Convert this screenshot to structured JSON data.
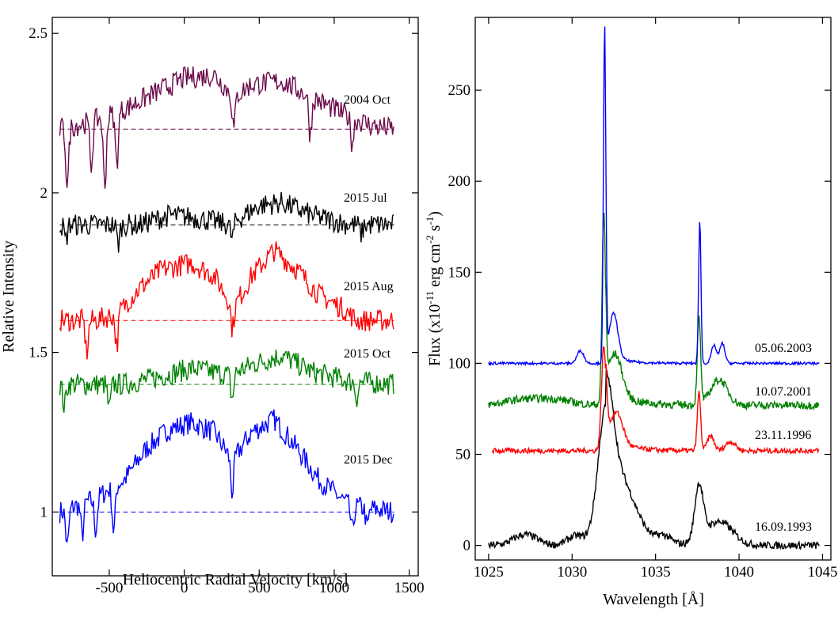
{
  "chart_data": [
    {
      "type": "line",
      "name": "left-panel",
      "xlabel": "Heliocentric Radial Velocity [km/s]",
      "ylabel": "Relative Intensity",
      "xlim": [
        -880,
        1560
      ],
      "ylim": [
        0.8,
        2.55
      ],
      "xticks": [
        -500,
        0,
        500,
        1000,
        1500
      ],
      "yticks": [
        1,
        1.5,
        2,
        2.5
      ],
      "xtick_labels": [
        "-500",
        "0",
        "500",
        "1000",
        "1500"
      ],
      "ytick_labels": [
        "1",
        "1.5",
        "2",
        "2.5"
      ],
      "x_range": [
        -830,
        1400
      ],
      "series": [
        {
          "name": "2015 Dec",
          "color": "#0000ff",
          "baseline": 1.0,
          "profile": [
            [
              -830,
              1.0
            ],
            [
              -600,
              1.04
            ],
            [
              -400,
              1.1
            ],
            [
              -250,
              1.2
            ],
            [
              -100,
              1.26
            ],
            [
              50,
              1.28
            ],
            [
              200,
              1.25
            ],
            [
              320,
              1.16
            ],
            [
              450,
              1.25
            ],
            [
              600,
              1.29
            ],
            [
              750,
              1.2
            ],
            [
              900,
              1.1
            ],
            [
              1100,
              1.02
            ],
            [
              1400,
              1.0
            ]
          ],
          "absorptions": [
            [
              -780,
              0.12
            ],
            [
              -680,
              0.1
            ],
            [
              -590,
              0.1
            ],
            [
              -470,
              0.14
            ],
            [
              320,
              0.1
            ],
            [
              1120,
              0.08
            ],
            [
              1220,
              0.06
            ]
          ]
        },
        {
          "name": "2015 Oct",
          "color": "#008000",
          "baseline": 1.4,
          "profile": [
            [
              -830,
              1.4
            ],
            [
              -400,
              1.4
            ],
            [
              -200,
              1.42
            ],
            [
              50,
              1.45
            ],
            [
              300,
              1.43
            ],
            [
              500,
              1.47
            ],
            [
              650,
              1.49
            ],
            [
              850,
              1.44
            ],
            [
              1100,
              1.41
            ],
            [
              1400,
              1.4
            ]
          ],
          "absorptions": [
            [
              -800,
              0.07
            ],
            [
              -500,
              0.08
            ],
            [
              320,
              0.08
            ],
            [
              1150,
              0.05
            ]
          ]
        },
        {
          "name": "2015 Aug",
          "color": "#ff0000",
          "baseline": 1.6,
          "profile": [
            [
              -830,
              1.6
            ],
            [
              -600,
              1.6
            ],
            [
              -450,
              1.62
            ],
            [
              -300,
              1.7
            ],
            [
              -150,
              1.76
            ],
            [
              50,
              1.78
            ],
            [
              200,
              1.74
            ],
            [
              330,
              1.64
            ],
            [
              450,
              1.74
            ],
            [
              600,
              1.82
            ],
            [
              750,
              1.76
            ],
            [
              900,
              1.68
            ],
            [
              1050,
              1.64
            ],
            [
              1150,
              1.6
            ],
            [
              1400,
              1.6
            ]
          ],
          "absorptions": [
            [
              -650,
              0.1
            ],
            [
              -450,
              0.1
            ],
            [
              320,
              0.07
            ]
          ]
        },
        {
          "name": "2015 Jul",
          "color": "#000000",
          "baseline": 1.9,
          "profile": [
            [
              -830,
              1.9
            ],
            [
              -300,
              1.9
            ],
            [
              -100,
              1.93
            ],
            [
              100,
              1.92
            ],
            [
              300,
              1.9
            ],
            [
              500,
              1.96
            ],
            [
              650,
              1.97
            ],
            [
              850,
              1.93
            ],
            [
              1100,
              1.9
            ],
            [
              1400,
              1.9
            ]
          ],
          "absorptions": [
            [
              -790,
              0.05
            ],
            [
              -440,
              0.06
            ],
            [
              320,
              0.05
            ],
            [
              1180,
              0.03
            ]
          ]
        },
        {
          "name": "2004 Oct",
          "color": "#6b0a4a",
          "baseline": 2.2,
          "profile": [
            [
              -830,
              2.2
            ],
            [
              -650,
              2.22
            ],
            [
              -450,
              2.25
            ],
            [
              -250,
              2.3
            ],
            [
              0,
              2.36
            ],
            [
              200,
              2.37
            ],
            [
              330,
              2.3
            ],
            [
              450,
              2.34
            ],
            [
              650,
              2.35
            ],
            [
              850,
              2.3
            ],
            [
              1050,
              2.25
            ],
            [
              1250,
              2.21
            ],
            [
              1400,
              2.2
            ]
          ],
          "absorptions": [
            [
              -780,
              0.18
            ],
            [
              -620,
              0.14
            ],
            [
              -530,
              0.22
            ],
            [
              -450,
              0.16
            ],
            [
              330,
              0.1
            ],
            [
              840,
              0.12
            ],
            [
              1120,
              0.08
            ]
          ]
        }
      ],
      "annotations": [
        "2004 Oct",
        "2015 Jul",
        "2015 Aug",
        "2015 Oct",
        "2015 Dec"
      ]
    },
    {
      "type": "line",
      "name": "right-panel",
      "xlabel": "Wavelength [Å]",
      "ylabel_parts": [
        "Flux (x10",
        "-11",
        " erg cm",
        "-2",
        " s",
        "-1",
        ")"
      ],
      "xlim": [
        1024.2,
        1045.5
      ],
      "ylim": [
        -8,
        290
      ],
      "xticks": [
        1025,
        1030,
        1035,
        1040,
        1045
      ],
      "yticks": [
        0,
        50,
        100,
        150,
        200,
        250
      ],
      "xtick_labels": [
        "1025",
        "1030",
        "1035",
        "1040",
        "1045"
      ],
      "ytick_labels": [
        "0",
        "50",
        "100",
        "150",
        "200",
        "250"
      ],
      "series": [
        {
          "name": "16.09.1993",
          "color": "#000000",
          "x_range": [
            1025,
            1044.8
          ],
          "offset": 0,
          "components": [
            [
              1032.0,
              60,
              0.45
            ],
            [
              1032.9,
              28,
              0.9
            ],
            [
              1037.6,
              30,
              0.25
            ],
            [
              1038.8,
              13,
              0.8
            ],
            [
              1027.2,
              6,
              0.7
            ],
            [
              1030.2,
              5,
              0.5
            ],
            [
              1035.5,
              4,
              0.4
            ]
          ],
          "tail": [
            1032.0,
            18,
            1.4
          ],
          "noise": 2.0
        },
        {
          "name": "23.11.1996",
          "color": "#ff0000",
          "x_range": [
            1025.2,
            1044.8
          ],
          "offset": 52,
          "components": [
            [
              1031.9,
              56,
              0.14
            ],
            [
              1032.7,
              16,
              0.35
            ],
            [
              1037.6,
              32,
              0.1
            ],
            [
              1038.3,
              8,
              0.2
            ],
            [
              1039.5,
              5,
              0.3
            ]
          ],
          "tail": [
            1032.0,
            10,
            1.0
          ],
          "noise": 1.4
        },
        {
          "name": "10.07.2001",
          "color": "#008000",
          "x_range": [
            1025.0,
            1044.8
          ],
          "offset": 77,
          "components": [
            [
              1031.9,
              103,
              0.1
            ],
            [
              1032.6,
              22,
              0.4
            ],
            [
              1037.6,
              47,
              0.1
            ],
            [
              1038.8,
              14,
              0.5
            ],
            [
              1027.0,
              3,
              1.0
            ],
            [
              1029.0,
              3,
              1.0
            ]
          ],
          "tail": [
            1032.0,
            10,
            1.2
          ],
          "noise": 2.2
        },
        {
          "name": "05.06.2003",
          "color": "#0000ff",
          "x_range": [
            1025.0,
            1044.8
          ],
          "offset": 100,
          "components": [
            [
              1031.95,
              184,
              0.07
            ],
            [
              1032.5,
              24,
              0.25
            ],
            [
              1037.65,
              79,
              0.07
            ],
            [
              1038.5,
              10,
              0.15
            ],
            [
              1039.0,
              11,
              0.15
            ],
            [
              1030.5,
              7,
              0.2
            ]
          ],
          "tail": [
            1032.0,
            6,
            0.9
          ],
          "noise": 0.7
        }
      ],
      "annotations": [
        "05.06.2003",
        "10.07.2001",
        "23.11.1996",
        "16.09.1993"
      ]
    }
  ]
}
